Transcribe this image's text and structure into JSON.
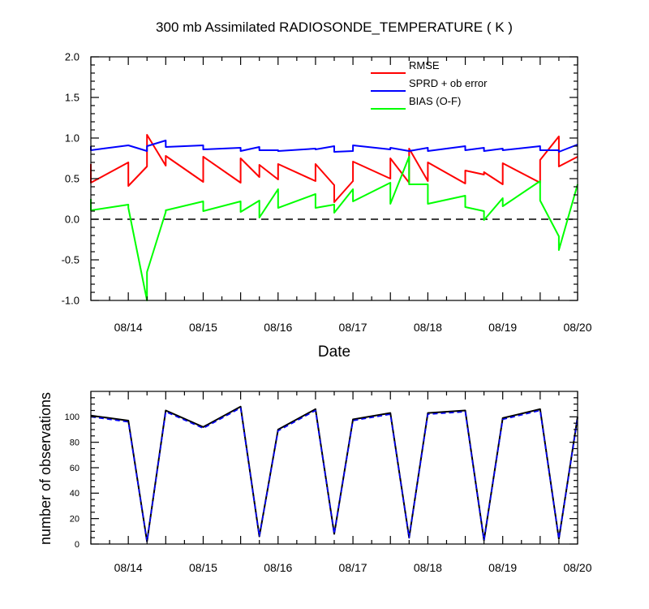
{
  "chart_data": [
    {
      "type": "line",
      "title": "300 mb Assimilated RADIOSONDE_TEMPERATURE ( K )",
      "xlabel": "Date",
      "ylabel": "",
      "x_tick_labels": [
        "08/14",
        "08/15",
        "08/16",
        "08/17",
        "08/18",
        "08/19",
        "08/20"
      ],
      "xlim": [
        -0.5,
        6.0
      ],
      "ylim": [
        -1.0,
        2.0
      ],
      "y_tick_labels": [
        "2.0",
        "1.5",
        "1.0",
        "0.5",
        "0.0",
        "-0.5",
        "-1.0"
      ],
      "zero_line": true,
      "legend_position": "top-right",
      "series": [
        {
          "name": "RMSE",
          "color": "#ff0000",
          "x": [
            -0.5,
            -0.5,
            0.0,
            0.0,
            0.25,
            0.25,
            0.5,
            0.5,
            1.0,
            1.0,
            1.5,
            1.5,
            1.75,
            1.75,
            2.0,
            2.0,
            2.5,
            2.5,
            2.75,
            2.75,
            3.0,
            3.0,
            3.5,
            3.5,
            3.75,
            3.75,
            4.0,
            4.0,
            4.5,
            4.5,
            4.75,
            4.75,
            5.0,
            5.0,
            5.5,
            5.5,
            5.75,
            5.75,
            6.0
          ],
          "y": [
            0.68,
            0.45,
            0.7,
            0.41,
            0.65,
            1.04,
            0.66,
            0.78,
            0.46,
            0.77,
            0.45,
            0.75,
            0.52,
            0.67,
            0.49,
            0.68,
            0.47,
            0.68,
            0.42,
            0.21,
            0.47,
            0.71,
            0.5,
            0.75,
            0.45,
            0.87,
            0.47,
            0.7,
            0.44,
            0.6,
            0.55,
            0.58,
            0.43,
            0.69,
            0.45,
            0.73,
            1.02,
            0.65,
            0.77
          ]
        },
        {
          "name": "SPRD + ob error",
          "color": "#0000ff",
          "x": [
            -0.5,
            -0.5,
            0.0,
            0.25,
            0.25,
            0.5,
            0.5,
            1.0,
            1.0,
            1.5,
            1.5,
            1.75,
            1.75,
            2.0,
            2.0,
            2.5,
            2.5,
            2.75,
            2.75,
            3.0,
            3.0,
            3.5,
            3.5,
            3.75,
            3.75,
            4.0,
            4.0,
            4.5,
            4.5,
            4.75,
            4.75,
            5.0,
            5.0,
            5.5,
            5.5,
            5.75,
            5.75,
            6.0
          ],
          "y": [
            0.9,
            0.85,
            0.91,
            0.84,
            0.9,
            0.97,
            0.89,
            0.91,
            0.86,
            0.88,
            0.84,
            0.89,
            0.85,
            0.85,
            0.84,
            0.87,
            0.86,
            0.9,
            0.83,
            0.84,
            0.91,
            0.86,
            0.88,
            0.84,
            0.84,
            0.88,
            0.84,
            0.9,
            0.85,
            0.88,
            0.84,
            0.87,
            0.85,
            0.9,
            0.85,
            0.85,
            0.83,
            0.92
          ]
        },
        {
          "name": "BIAS (O-F)",
          "color": "#00ff00",
          "x": [
            -0.5,
            -0.5,
            0.0,
            0.0,
            0.25,
            0.25,
            0.5,
            0.5,
            1.0,
            1.0,
            1.5,
            1.5,
            1.75,
            1.75,
            2.0,
            2.0,
            2.5,
            2.5,
            2.75,
            2.75,
            3.0,
            3.0,
            3.5,
            3.5,
            3.75,
            3.75,
            4.0,
            4.0,
            4.5,
            4.5,
            4.75,
            4.75,
            5.0,
            5.0,
            5.5,
            5.5,
            5.75,
            5.75,
            6.0
          ],
          "y": [
            0.25,
            0.11,
            0.18,
            0.14,
            -1.0,
            -0.65,
            0.09,
            0.11,
            0.22,
            0.1,
            0.22,
            0.09,
            0.23,
            0.02,
            0.37,
            0.14,
            0.31,
            0.14,
            0.18,
            0.08,
            0.37,
            0.22,
            0.45,
            0.19,
            0.77,
            0.43,
            0.43,
            0.19,
            0.29,
            0.15,
            0.1,
            -0.01,
            0.26,
            0.16,
            0.47,
            0.23,
            -0.21,
            -0.38,
            0.43
          ]
        }
      ]
    },
    {
      "type": "line",
      "title": "",
      "xlabel": "",
      "ylabel": "number of observations",
      "x_tick_labels": [
        "08/14",
        "08/15",
        "08/16",
        "08/17",
        "08/18",
        "08/19",
        "08/20"
      ],
      "xlim": [
        -0.5,
        6.0
      ],
      "ylim": [
        0,
        120
      ],
      "y_tick_labels": [
        "0",
        "20",
        "40",
        "60",
        "80",
        "100"
      ],
      "series": [
        {
          "line_style": "solid",
          "color": "#000000",
          "x": [
            -0.5,
            0.0,
            0.25,
            0.5,
            1.0,
            1.5,
            1.75,
            2.0,
            2.5,
            2.75,
            3.0,
            3.5,
            3.75,
            4.0,
            4.5,
            4.75,
            5.0,
            5.5,
            5.75,
            6.0
          ],
          "y": [
            101,
            97,
            2,
            105,
            92,
            108,
            6,
            90,
            106,
            8,
            98,
            103,
            5,
            103,
            105,
            3,
            99,
            106,
            4,
            100
          ]
        },
        {
          "line_style": "dashed",
          "color": "#0000ff",
          "x": [
            -0.5,
            0.0,
            0.25,
            0.5,
            1.0,
            1.5,
            1.75,
            2.0,
            2.5,
            2.75,
            3.0,
            3.5,
            3.75,
            4.0,
            4.5,
            4.75,
            5.0,
            5.5,
            5.75,
            6.0
          ],
          "y": [
            100,
            96,
            2,
            104,
            91,
            107,
            6,
            89,
            105,
            8,
            97,
            102,
            5,
            102,
            104,
            3,
            98,
            105,
            4,
            99
          ]
        }
      ]
    }
  ]
}
